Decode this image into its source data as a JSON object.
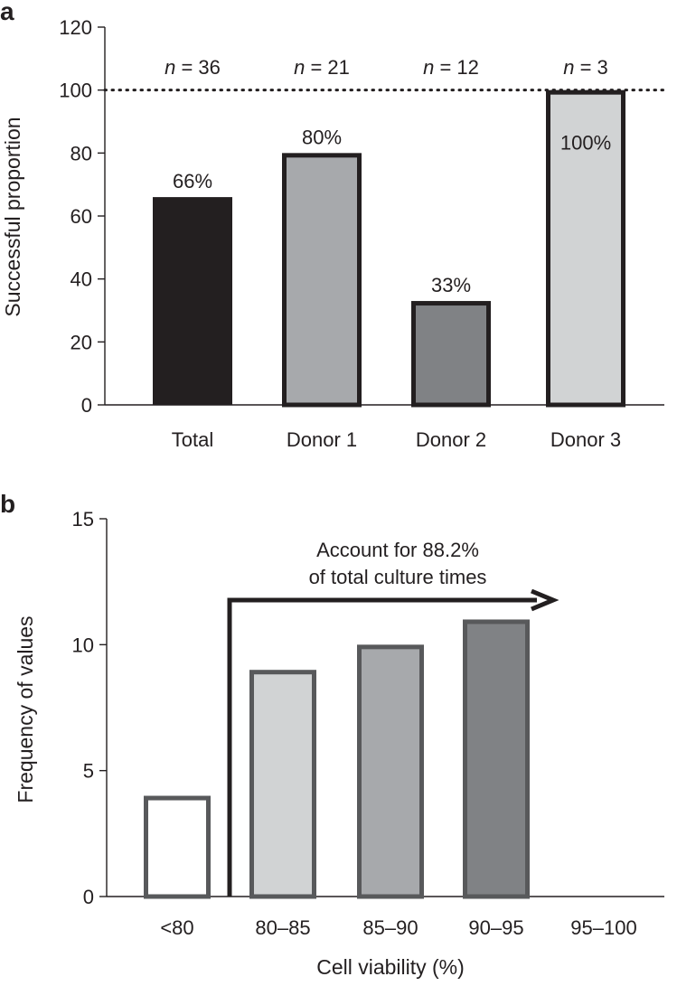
{
  "panels": {
    "a": {
      "letter": "a"
    },
    "b": {
      "letter": "b"
    }
  },
  "chart_data": [
    {
      "type": "bar",
      "ylabel": "Successful proportion",
      "xlabel": "",
      "ylim": [
        0,
        120
      ],
      "yticks": [
        0,
        20,
        40,
        60,
        80,
        100,
        120
      ],
      "categories": [
        "Total",
        "Donor 1",
        "Donor 2",
        "Donor 3"
      ],
      "values": [
        66,
        80,
        33,
        100
      ],
      "value_labels": [
        "66%",
        "80%",
        "33%",
        "100%"
      ],
      "n_italic": "n",
      "n_values": [
        "= 36",
        "= 21",
        "= 12",
        "= 3"
      ],
      "reference_line": {
        "y": 100,
        "style": "dotted"
      },
      "fills": [
        "#231f20",
        "#a7a9ac",
        "#808285",
        "#d1d3d4"
      ],
      "edge": "#231f20",
      "grid": false
    },
    {
      "type": "bar",
      "ylabel": "Frequency of values",
      "xlabel": "Cell viability (%)",
      "ylim": [
        0,
        15
      ],
      "yticks": [
        0,
        5,
        10,
        15
      ],
      "categories": [
        "<80",
        "80–85",
        "85–90",
        "90–95",
        "95–100"
      ],
      "values": [
        4,
        9,
        10,
        11,
        0
      ],
      "fills": [
        "#ffffff",
        "#d1d3d4",
        "#a7a9ac",
        "#808285",
        "#ffffff"
      ],
      "edge": "#58595b",
      "annotation": {
        "lines": [
          "Account for 88.2%",
          "of total culture times"
        ],
        "arrow": "bracket-right"
      },
      "grid": false
    }
  ]
}
